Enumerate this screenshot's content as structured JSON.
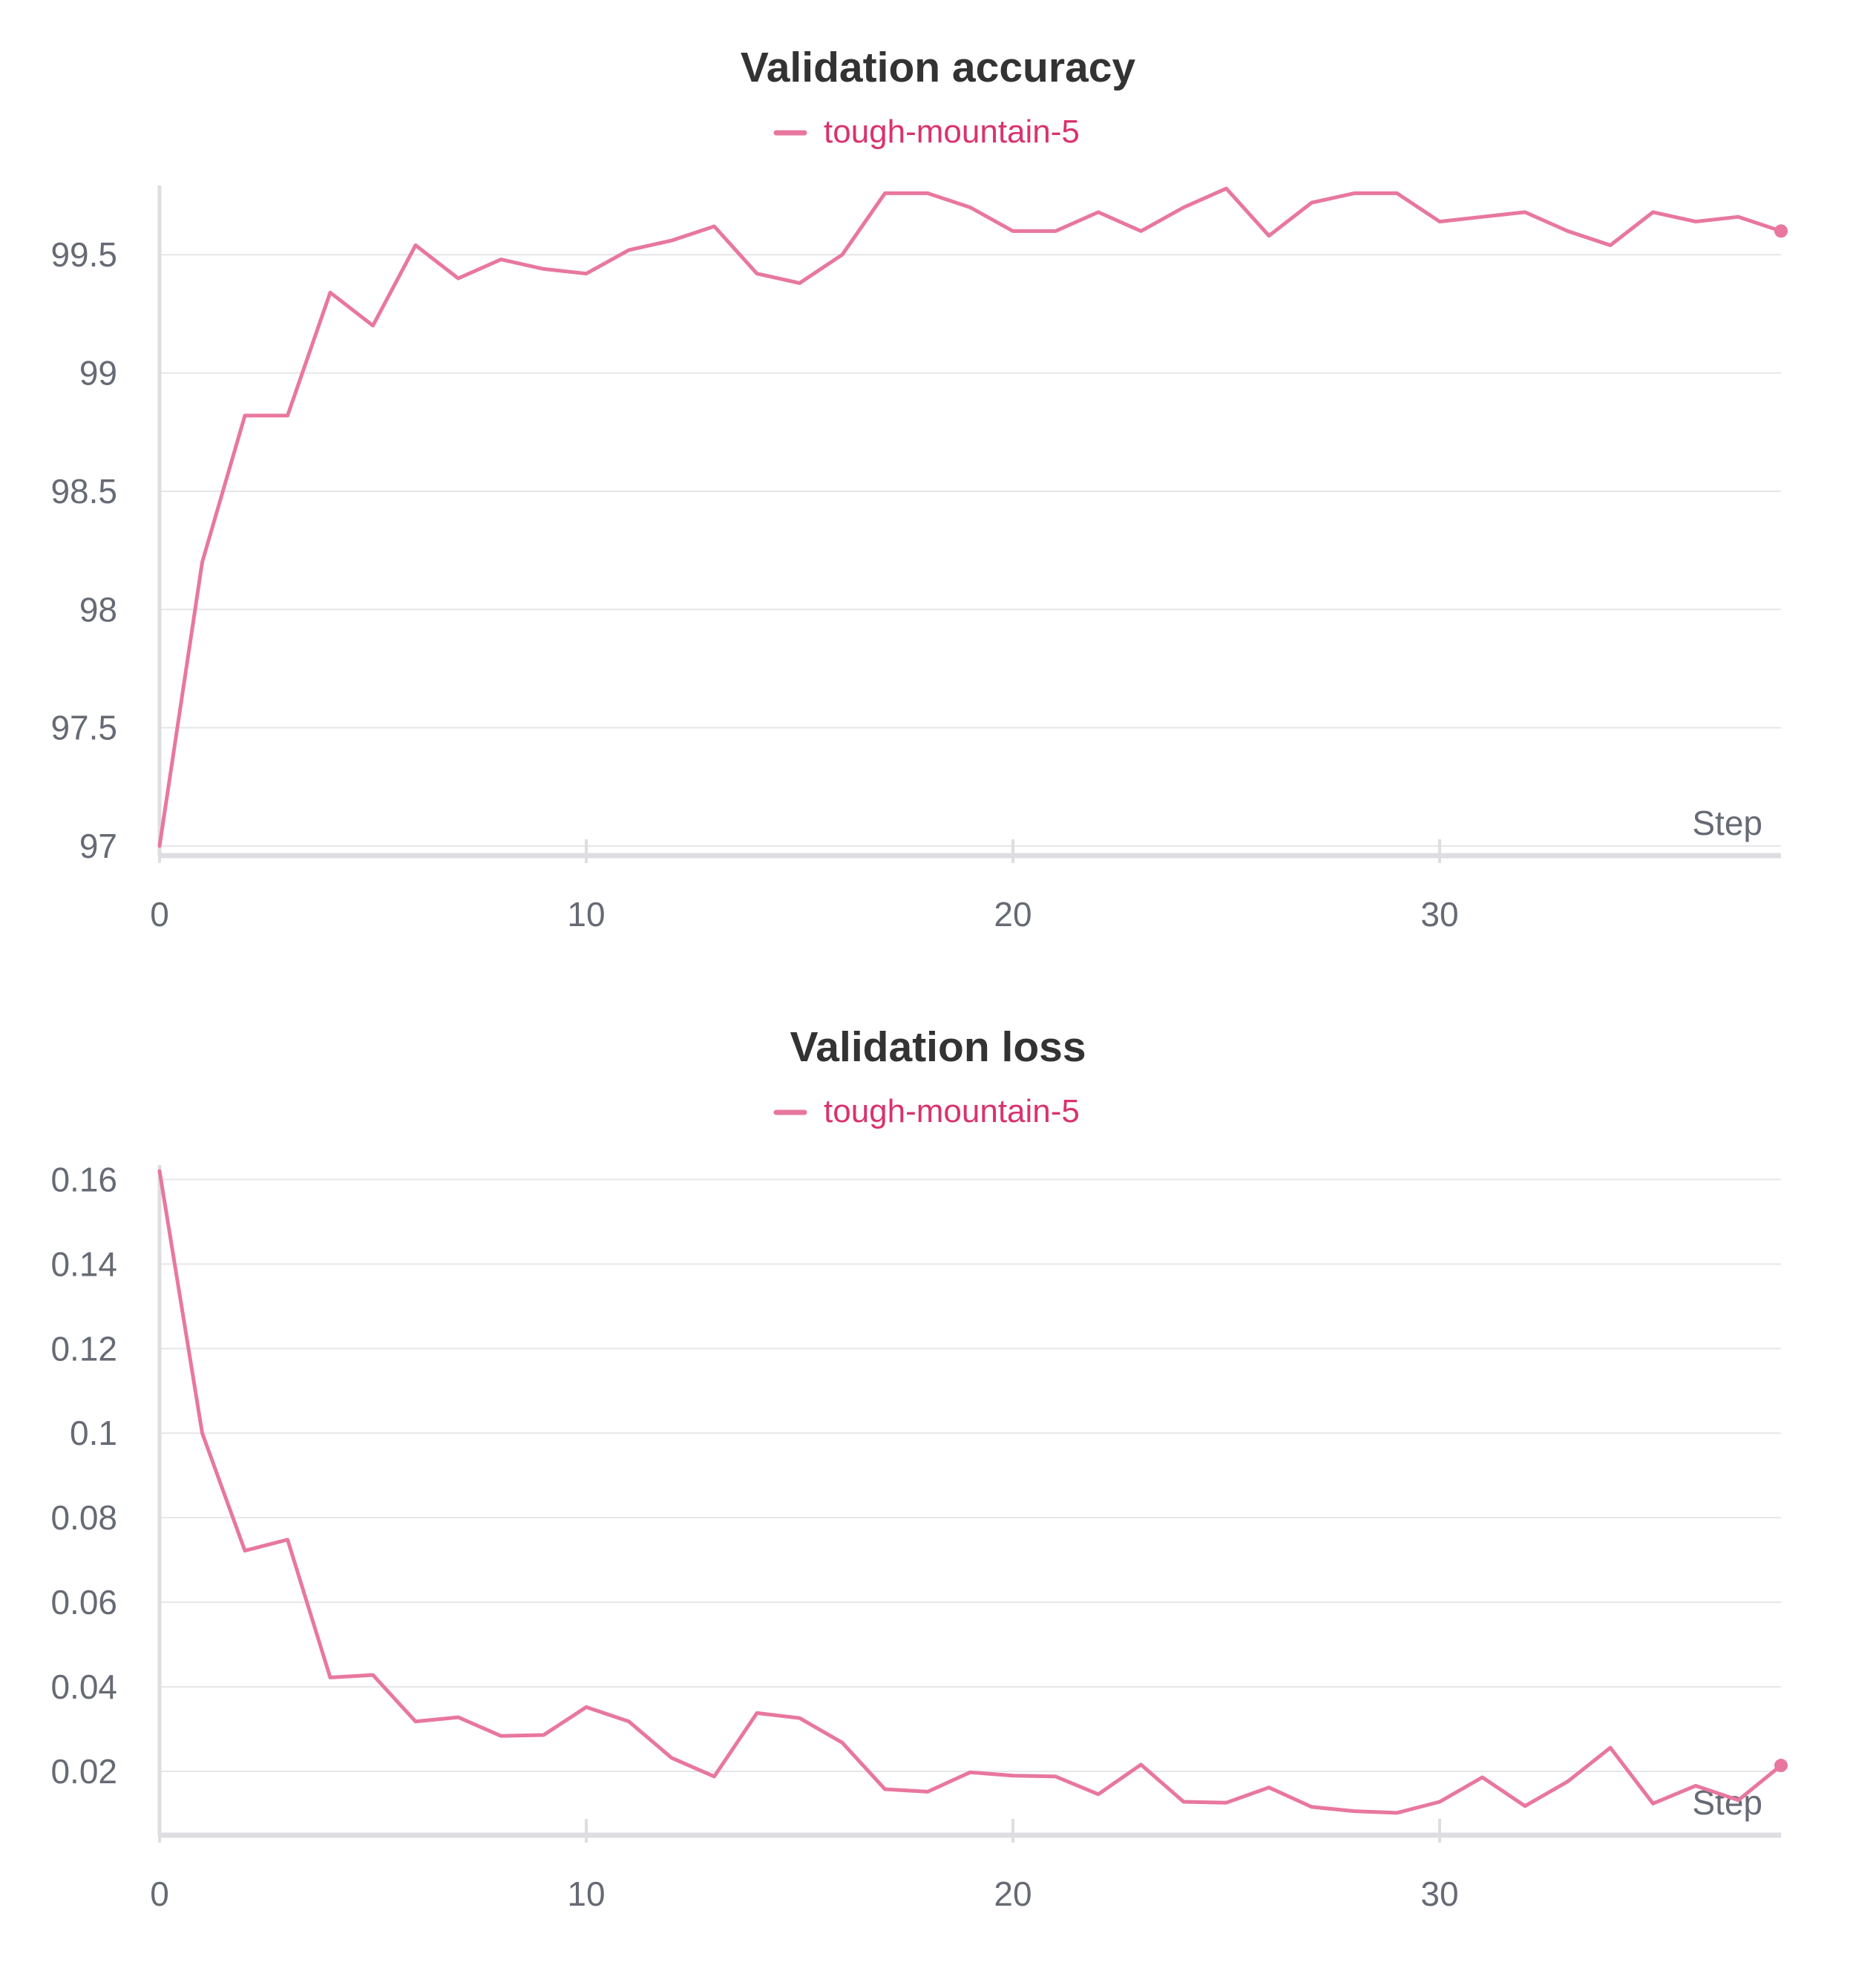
{
  "chart_data": [
    {
      "type": "line",
      "title": "Validation accuracy",
      "xlabel": "Step",
      "ylabel": "",
      "xlim": [
        0,
        38
      ],
      "ylim": [
        97,
        99.78
      ],
      "x_ticks": [
        0,
        10,
        20,
        30
      ],
      "y_ticks": [
        97,
        97.5,
        98,
        98.5,
        99,
        99.5
      ],
      "x_tick_labels": [
        "0",
        "10",
        "20",
        "30"
      ],
      "y_tick_labels": [
        "97",
        "97.5",
        "98",
        "98.5",
        "99",
        "99.5"
      ],
      "grid": true,
      "legend_position": "top-center",
      "series": [
        {
          "name": "tough-mountain-5",
          "color": "#e8779f",
          "x": [
            0,
            1,
            2,
            3,
            4,
            5,
            6,
            7,
            8,
            9,
            10,
            11,
            12,
            13,
            14,
            15,
            16,
            17,
            18,
            19,
            20,
            21,
            22,
            23,
            24,
            25,
            26,
            27,
            28,
            29,
            30,
            31,
            32,
            33,
            34,
            35,
            36,
            37,
            38
          ],
          "values": [
            97.0,
            98.2,
            98.82,
            98.82,
            99.34,
            99.2,
            99.54,
            99.4,
            99.48,
            99.44,
            99.42,
            99.52,
            99.56,
            99.62,
            99.42,
            99.38,
            99.5,
            99.76,
            99.76,
            99.7,
            99.6,
            99.6,
            99.68,
            99.6,
            99.7,
            99.78,
            99.58,
            99.72,
            99.76,
            99.76,
            99.64,
            99.66,
            99.68,
            99.6,
            99.54,
            99.68,
            99.64,
            99.66,
            99.6
          ]
        }
      ]
    },
    {
      "type": "line",
      "title": "Validation loss",
      "xlabel": "Step",
      "ylabel": "",
      "xlim": [
        0,
        38
      ],
      "ylim": [
        0.01,
        0.162
      ],
      "x_ticks": [
        0,
        10,
        20,
        30
      ],
      "y_ticks": [
        0.02,
        0.04,
        0.06,
        0.08,
        0.1,
        0.12,
        0.14,
        0.16
      ],
      "x_tick_labels": [
        "0",
        "10",
        "20",
        "30"
      ],
      "y_tick_labels": [
        "0.02",
        "0.04",
        "0.06",
        "0.08",
        "0.1",
        "0.12",
        "0.14",
        "0.16"
      ],
      "grid": true,
      "legend_position": "top-center",
      "series": [
        {
          "name": "tough-mountain-5",
          "color": "#e8779f",
          "x": [
            0,
            1,
            2,
            3,
            4,
            5,
            6,
            7,
            8,
            9,
            10,
            11,
            12,
            13,
            14,
            15,
            16,
            17,
            18,
            19,
            20,
            21,
            22,
            23,
            24,
            25,
            26,
            27,
            28,
            29,
            30,
            31,
            32,
            33,
            34,
            35,
            36,
            37,
            38
          ],
          "values": [
            0.162,
            0.1,
            0.0722,
            0.0748,
            0.0422,
            0.0428,
            0.0318,
            0.0328,
            0.0284,
            0.0286,
            0.0352,
            0.0318,
            0.0232,
            0.0188,
            0.0338,
            0.0326,
            0.0268,
            0.0158,
            0.0152,
            0.0198,
            0.019,
            0.0188,
            0.0146,
            0.0216,
            0.0128,
            0.0126,
            0.0162,
            0.0116,
            0.0106,
            0.0102,
            0.0128,
            0.0186,
            0.0118,
            0.0176,
            0.0256,
            0.0124,
            0.0166,
            0.0132,
            0.0214
          ]
        }
      ]
    }
  ]
}
